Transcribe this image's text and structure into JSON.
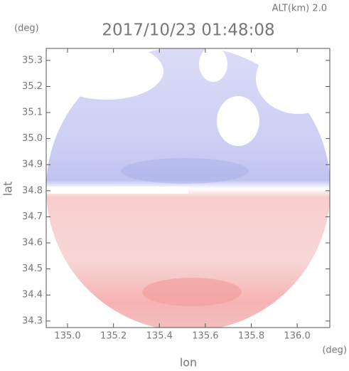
{
  "chart_data": {
    "type": "radar-map",
    "title": "2017/10/23 01:48:08",
    "altitude_label": "ALT(km) 2.0",
    "xlabel": "lon",
    "ylabel": "lat",
    "xunit": "(deg)",
    "yunit": "(deg)",
    "xlim": [
      134.907,
      136.142
    ],
    "ylim": [
      34.275,
      35.346
    ],
    "xticks": [
      {
        "value": 135,
        "label": "135.0"
      },
      135.2,
      135.4,
      135.6,
      135.8,
      {
        "value": 136,
        "label": "136.0"
      }
    ],
    "yticks": [
      34.3,
      34.4,
      34.5,
      34.6,
      34.7,
      34.8,
      34.9,
      {
        "value": 35,
        "label": "35.0"
      },
      35.1,
      35.2,
      35.3
    ]
  }
}
